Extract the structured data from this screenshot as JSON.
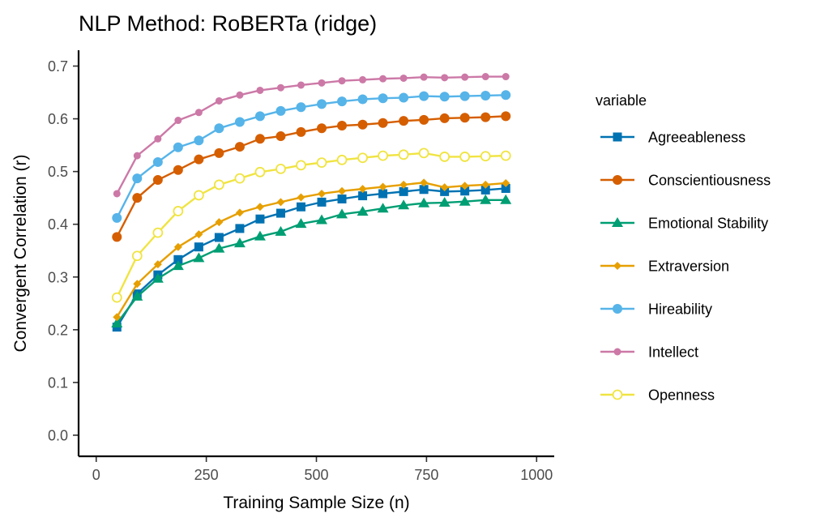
{
  "chart_data": {
    "type": "line",
    "title": "NLP Method: RoBERTa (ridge)",
    "xlabel": "Training Sample Size (n)",
    "ylabel": "Convergent Correlation (r)",
    "xlim": [
      -40,
      1040
    ],
    "ylim": [
      -0.04,
      0.73
    ],
    "xticks": [
      0,
      250,
      500,
      750,
      1000
    ],
    "yticks": [
      0.0,
      0.1,
      0.2,
      0.3,
      0.4,
      0.5,
      0.6,
      0.7
    ],
    "xtick_labels": [
      "0",
      "250",
      "500",
      "750",
      "1000"
    ],
    "ytick_labels": [
      "0.0",
      "0.1",
      "0.2",
      "0.3",
      "0.4",
      "0.5",
      "0.6",
      "0.7"
    ],
    "grid": false,
    "legend_title": "variable",
    "legend_position": "right",
    "x": [
      47,
      93,
      140,
      186,
      233,
      279,
      326,
      372,
      419,
      465,
      512,
      558,
      605,
      651,
      698,
      744,
      791,
      837,
      884,
      930
    ],
    "series": [
      {
        "name": "Agreeableness",
        "color": "#0072B2",
        "marker": "square",
        "values": [
          0.205,
          0.268,
          0.304,
          0.333,
          0.357,
          0.375,
          0.392,
          0.41,
          0.421,
          0.433,
          0.442,
          0.448,
          0.454,
          0.458,
          0.462,
          0.466,
          0.462,
          0.463,
          0.465,
          0.468
        ]
      },
      {
        "name": "Conscientiousness",
        "color": "#D55E00",
        "marker": "circle",
        "values": [
          0.376,
          0.45,
          0.484,
          0.503,
          0.523,
          0.535,
          0.547,
          0.562,
          0.567,
          0.575,
          0.582,
          0.587,
          0.589,
          0.592,
          0.596,
          0.598,
          0.601,
          0.602,
          0.603,
          0.605
        ]
      },
      {
        "name": "Emotional Stability",
        "color": "#009E73",
        "marker": "triangle",
        "values": [
          0.212,
          0.263,
          0.297,
          0.321,
          0.336,
          0.354,
          0.364,
          0.377,
          0.386,
          0.401,
          0.408,
          0.419,
          0.424,
          0.43,
          0.436,
          0.44,
          0.441,
          0.443,
          0.446,
          0.446
        ]
      },
      {
        "name": "Extraversion",
        "color": "#E69F00",
        "marker": "diamond",
        "values": [
          0.224,
          0.287,
          0.324,
          0.357,
          0.381,
          0.404,
          0.422,
          0.433,
          0.442,
          0.451,
          0.458,
          0.463,
          0.467,
          0.471,
          0.475,
          0.479,
          0.47,
          0.473,
          0.475,
          0.478
        ]
      },
      {
        "name": "Hireability",
        "color": "#56B4E9",
        "marker": "circle",
        "values": [
          0.412,
          0.487,
          0.518,
          0.546,
          0.559,
          0.582,
          0.594,
          0.605,
          0.615,
          0.622,
          0.628,
          0.633,
          0.637,
          0.639,
          0.64,
          0.643,
          0.642,
          0.643,
          0.644,
          0.645
        ]
      },
      {
        "name": "Intellect",
        "color": "#CC79A7",
        "marker": "circle-small",
        "values": [
          0.458,
          0.53,
          0.562,
          0.597,
          0.612,
          0.634,
          0.645,
          0.654,
          0.659,
          0.664,
          0.668,
          0.672,
          0.674,
          0.676,
          0.677,
          0.679,
          0.678,
          0.679,
          0.68,
          0.68
        ]
      },
      {
        "name": "Openness",
        "color": "#F0E442",
        "marker": "circle-open",
        "values": [
          0.261,
          0.34,
          0.384,
          0.425,
          0.455,
          0.475,
          0.487,
          0.499,
          0.505,
          0.512,
          0.517,
          0.522,
          0.526,
          0.53,
          0.532,
          0.535,
          0.528,
          0.528,
          0.529,
          0.53
        ]
      }
    ]
  }
}
